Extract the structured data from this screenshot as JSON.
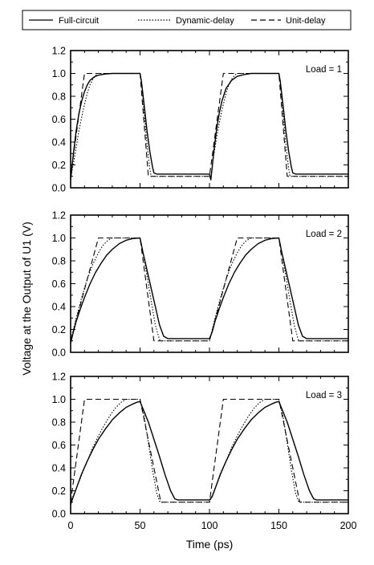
{
  "legend": {
    "entries": [
      {
        "label": "Full-circuit",
        "style": "solid"
      },
      {
        "label": "Dynamic-delay",
        "style": "dotted"
      },
      {
        "label": "Unit-delay",
        "style": "dashed"
      }
    ]
  },
  "chart_data": {
    "type": "line",
    "xlabel": "Time (ps)",
    "ylabel": "Voltage at the Output of U1 (V)",
    "xlim": [
      0,
      200
    ],
    "ylim": [
      0,
      1.2
    ],
    "xticks": [
      "0",
      "50",
      "100",
      "150",
      "200"
    ],
    "yticks": [
      "0.0",
      "0.2",
      "0.4",
      "0.6",
      "0.8",
      "1.0",
      "1.2"
    ],
    "grid": false,
    "legend_position": "top",
    "panels": [
      {
        "load_label": "Load = 1",
        "series": [
          {
            "name": "Full-circuit",
            "x": [
              0,
              2,
              4,
              6,
              8,
              10,
              12,
              14,
              17,
              20,
              25,
              30,
              40,
              50,
              51,
              53,
              55,
              57,
              59,
              60,
              62,
              100,
              101,
              103,
              105,
              107,
              109,
              112,
              116,
              120,
              125,
              130,
              140,
              150,
              151,
              153,
              155,
              157,
              159,
              160,
              162,
              200
            ],
            "y": [
              0.07,
              0.3,
              0.5,
              0.65,
              0.76,
              0.84,
              0.9,
              0.94,
              0.97,
              0.985,
              0.995,
              1.0,
              1.0,
              1.0,
              0.93,
              0.72,
              0.5,
              0.32,
              0.18,
              0.13,
              0.12,
              0.12,
              0.07,
              0.3,
              0.5,
              0.65,
              0.76,
              0.87,
              0.94,
              0.975,
              0.99,
              1.0,
              1.0,
              1.0,
              0.93,
              0.72,
              0.5,
              0.32,
              0.18,
              0.13,
              0.12,
              0.12
            ]
          },
          {
            "name": "Dynamic-delay",
            "x": [
              0,
              3,
              6,
              9,
              12,
              14,
              16,
              18,
              19.5,
              50,
              51,
              53,
              55,
              57,
              58,
              100,
              101,
              103,
              106,
              109,
              112,
              114,
              116,
              118,
              119.5,
              150,
              151,
              153,
              155,
              157,
              158,
              200
            ],
            "y": [
              0.08,
              0.28,
              0.5,
              0.68,
              0.83,
              0.9,
              0.95,
              0.98,
              1.0,
              1.0,
              0.93,
              0.65,
              0.38,
              0.17,
              0.1,
              0.1,
              0.08,
              0.28,
              0.5,
              0.68,
              0.83,
              0.9,
              0.95,
              0.98,
              1.0,
              1.0,
              0.93,
              0.65,
              0.38,
              0.17,
              0.1,
              0.1
            ]
          },
          {
            "name": "Unit-delay",
            "x": [
              0,
              10,
              50,
              56,
              100,
              110,
              150,
              156,
              200
            ],
            "y": [
              0.1,
              1.0,
              1.0,
              0.1,
              0.1,
              1.0,
              1.0,
              0.1,
              0.1
            ]
          }
        ]
      },
      {
        "load_label": "Load = 2",
        "series": [
          {
            "name": "Full-circuit",
            "x": [
              0,
              2,
              4,
              7,
              10,
              14,
              18,
              22,
              26,
              30,
              35,
              40,
              45,
              50,
              52,
              55,
              58,
              61,
              64,
              67,
              70,
              100,
              102,
              104,
              107,
              110,
              114,
              118,
              122,
              126,
              130,
              135,
              140,
              145,
              150,
              152,
              155,
              158,
              161,
              164,
              167,
              170,
              200
            ],
            "y": [
              0.08,
              0.18,
              0.27,
              0.38,
              0.48,
              0.6,
              0.7,
              0.78,
              0.85,
              0.9,
              0.95,
              0.98,
              0.995,
              1.0,
              0.88,
              0.72,
              0.56,
              0.4,
              0.24,
              0.14,
              0.12,
              0.12,
              0.18,
              0.27,
              0.38,
              0.48,
              0.6,
              0.7,
              0.78,
              0.85,
              0.9,
              0.95,
              0.98,
              0.995,
              1.0,
              0.88,
              0.72,
              0.56,
              0.4,
              0.24,
              0.14,
              0.12,
              0.12
            ]
          },
          {
            "name": "Dynamic-delay",
            "x": [
              0,
              4,
              8,
              12,
              16,
              20,
              23,
              26,
              29,
              30,
              50,
              52,
              55,
              58,
              61,
              64,
              65,
              100,
              104,
              108,
              112,
              116,
              120,
              123,
              126,
              129,
              130,
              150,
              152,
              155,
              158,
              161,
              164,
              165,
              200
            ],
            "y": [
              0.1,
              0.3,
              0.48,
              0.64,
              0.77,
              0.87,
              0.93,
              0.97,
              0.995,
              1.0,
              1.0,
              0.88,
              0.67,
              0.45,
              0.24,
              0.11,
              0.1,
              0.1,
              0.3,
              0.48,
              0.64,
              0.77,
              0.87,
              0.93,
              0.97,
              0.995,
              1.0,
              1.0,
              0.88,
              0.67,
              0.45,
              0.24,
              0.11,
              0.1,
              0.1
            ]
          },
          {
            "name": "Unit-delay",
            "x": [
              0,
              10,
              20,
              50,
              60,
              100,
              110,
              120,
              150,
              160,
              200
            ],
            "y": [
              0.1,
              0.55,
              1.0,
              1.0,
              0.1,
              0.1,
              0.55,
              1.0,
              1.0,
              0.1,
              0.1
            ]
          }
        ]
      },
      {
        "load_label": "Load = 3",
        "series": [
          {
            "name": "Full-circuit",
            "x": [
              0,
              2,
              5,
              8,
              12,
              16,
              20,
              25,
              30,
              35,
              40,
              45,
              48,
              50,
              52,
              56,
              60,
              64,
              68,
              72,
              75,
              77,
              80,
              100,
              102,
              105,
              108,
              112,
              116,
              120,
              125,
              130,
              135,
              140,
              145,
              148,
              150,
              152,
              156,
              160,
              164,
              168,
              172,
              175,
              177,
              180,
              200
            ],
            "y": [
              0.08,
              0.15,
              0.25,
              0.35,
              0.46,
              0.56,
              0.65,
              0.74,
              0.82,
              0.88,
              0.93,
              0.96,
              0.975,
              0.98,
              0.92,
              0.8,
              0.65,
              0.5,
              0.34,
              0.2,
              0.13,
              0.12,
              0.12,
              0.12,
              0.15,
              0.25,
              0.35,
              0.46,
              0.56,
              0.65,
              0.74,
              0.82,
              0.88,
              0.93,
              0.96,
              0.975,
              0.98,
              0.92,
              0.8,
              0.65,
              0.5,
              0.34,
              0.2,
              0.13,
              0.12,
              0.12,
              0.12
            ]
          },
          {
            "name": "Dynamic-delay",
            "x": [
              0,
              4,
              8,
              12,
              16,
              20,
              24,
              28,
              32,
              36,
              40,
              50,
              53,
              56,
              59,
              62,
              64,
              65,
              100,
              104,
              108,
              112,
              116,
              120,
              124,
              128,
              132,
              136,
              140,
              150,
              153,
              156,
              159,
              162,
              164,
              165,
              200
            ],
            "y": [
              0.1,
              0.22,
              0.34,
              0.46,
              0.58,
              0.68,
              0.77,
              0.85,
              0.92,
              0.97,
              1.0,
              1.0,
              0.85,
              0.62,
              0.38,
              0.18,
              0.11,
              0.1,
              0.1,
              0.22,
              0.34,
              0.46,
              0.58,
              0.68,
              0.77,
              0.85,
              0.92,
              0.97,
              1.0,
              1.0,
              0.85,
              0.62,
              0.38,
              0.18,
              0.11,
              0.1,
              0.1
            ]
          },
          {
            "name": "Unit-delay",
            "x": [
              0,
              10,
              50,
              65,
              100,
              110,
              150,
              165,
              200
            ],
            "y": [
              0.1,
              1.0,
              1.0,
              0.1,
              0.1,
              1.0,
              1.0,
              0.1,
              0.1
            ]
          }
        ]
      }
    ]
  }
}
